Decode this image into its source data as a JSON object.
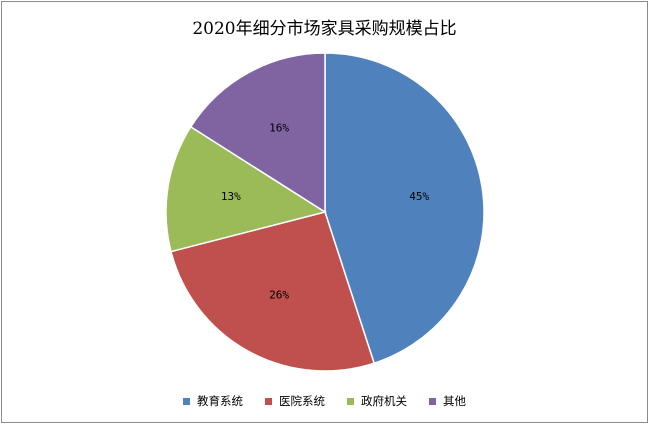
{
  "chart_data": {
    "type": "pie",
    "title": "2020年细分市场家具采购规模占比",
    "categories": [
      "教育系统",
      "医院系统",
      "政府机关",
      "其他"
    ],
    "values": [
      45,
      26,
      13,
      16
    ],
    "labels": [
      "45%",
      "26%",
      "13%",
      "16%"
    ],
    "colors": [
      "#4f81bd",
      "#c0504d",
      "#9bbb59",
      "#8064a2"
    ],
    "start_angle": "12 o'clock, clockwise",
    "legend_position": "bottom"
  }
}
